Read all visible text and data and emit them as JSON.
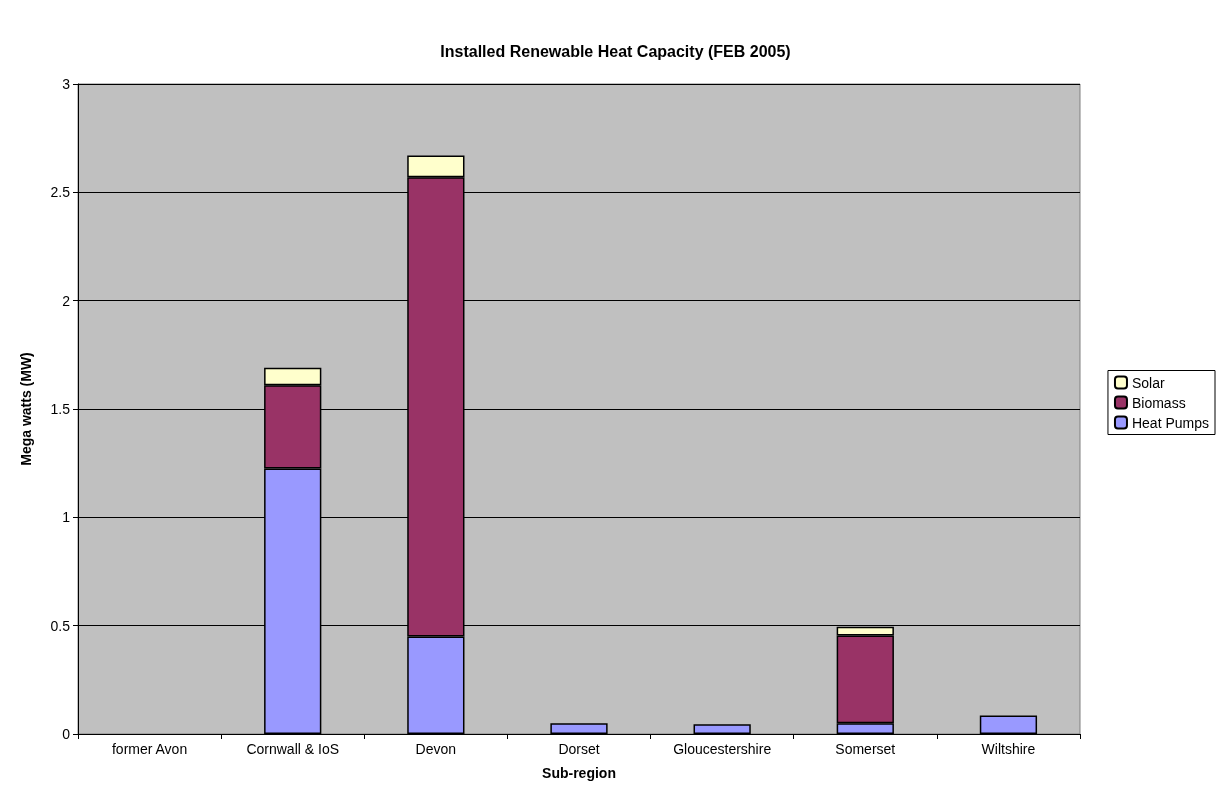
{
  "chart_data": {
    "type": "bar",
    "stacked": true,
    "title": "Installed Renewable Heat Capacity (FEB 2005)",
    "xlabel": "Sub-region",
    "ylabel": "Mega watts (MW)",
    "categories": [
      "former Avon",
      "Cornwall & IoS",
      "Devon",
      "Dorset",
      "Gloucestershire",
      "Somerset",
      "Wiltshire"
    ],
    "series": [
      {
        "name": "Heat Pumps",
        "color": "#9999ff",
        "values": [
          null,
          1.225,
          0.45,
          0.05,
          0.045,
          0.05,
          0.085
        ]
      },
      {
        "name": "Biomass",
        "color": "#993366",
        "values": [
          null,
          0.385,
          2.12,
          null,
          null,
          0.405,
          null
        ]
      },
      {
        "name": "Solar",
        "color": "#ffffcc",
        "values": [
          null,
          0.08,
          0.1,
          null,
          null,
          0.04,
          null
        ]
      }
    ],
    "ylim": [
      0,
      3
    ],
    "yticks": [
      0,
      0.5,
      1,
      1.5,
      2,
      2.5,
      3
    ],
    "grid": "y",
    "legend": "right"
  }
}
